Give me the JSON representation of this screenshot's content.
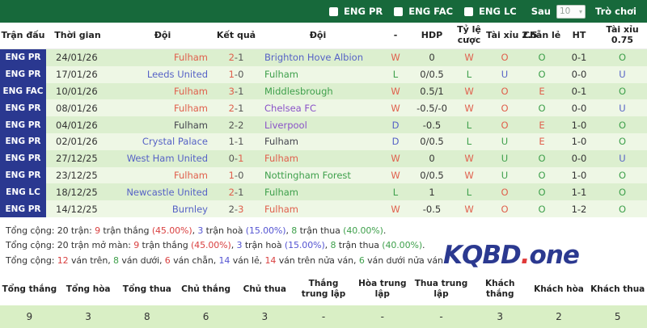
{
  "colors": {
    "red": "#e0604d",
    "green": "#3fa04c",
    "blue": "#5662c6",
    "purple": "#8a52c8",
    "dark": "#45454f",
    "score_dark": "#555555",
    "sum_dark": "#333333",
    "sum_red": "#d94040",
    "sum_blue": "#5454d2",
    "sum_green": "#3fa04c"
  },
  "topbar": {
    "filters": [
      {
        "label": "ENG PR"
      },
      {
        "label": "ENG FAC"
      },
      {
        "label": "ENG LC"
      }
    ],
    "sau_label": "Sau",
    "select_value": "10",
    "game_label": "Trò chơi"
  },
  "table": {
    "headers": [
      "Trận đấu",
      "Thời gian",
      "Đội",
      "Kết quả",
      "Đội",
      "-",
      "HDP",
      "Tỷ lệ cược",
      "Tài xỉu 2.5",
      "Chẵn lẻ",
      "HT",
      "Tài xỉu 0.75"
    ],
    "rows": [
      {
        "league": "ENG PR",
        "date": "24/01/26",
        "home": {
          "name": "Fulham",
          "color": "red"
        },
        "score": {
          "h": "2",
          "a": "1",
          "hc": "red",
          "ac": "score_dark"
        },
        "away": {
          "name": "Brighton Hove Albion",
          "color": "blue"
        },
        "result": {
          "t": "W",
          "c": "red"
        },
        "hdp": "0",
        "odds": {
          "t": "W",
          "c": "red"
        },
        "ou25": {
          "t": "O",
          "c": "red"
        },
        "oe": {
          "t": "O",
          "c": "green"
        },
        "ht": "0-1",
        "ou075": {
          "t": "O",
          "c": "green"
        }
      },
      {
        "league": "ENG PR",
        "date": "17/01/26",
        "home": {
          "name": "Leeds United",
          "color": "blue"
        },
        "score": {
          "h": "1",
          "a": "0",
          "hc": "red",
          "ac": "score_dark"
        },
        "away": {
          "name": "Fulham",
          "color": "green"
        },
        "result": {
          "t": "L",
          "c": "green"
        },
        "hdp": "0/0.5",
        "odds": {
          "t": "L",
          "c": "green"
        },
        "ou25": {
          "t": "U",
          "c": "blue"
        },
        "oe": {
          "t": "O",
          "c": "green"
        },
        "ht": "0-0",
        "ou075": {
          "t": "U",
          "c": "blue"
        }
      },
      {
        "league": "ENG FAC",
        "date": "10/01/26",
        "home": {
          "name": "Fulham",
          "color": "red"
        },
        "score": {
          "h": "3",
          "a": "1",
          "hc": "red",
          "ac": "score_dark"
        },
        "away": {
          "name": "Middlesbrough",
          "color": "green"
        },
        "result": {
          "t": "W",
          "c": "red"
        },
        "hdp": "0.5/1",
        "odds": {
          "t": "W",
          "c": "red"
        },
        "ou25": {
          "t": "O",
          "c": "red"
        },
        "oe": {
          "t": "E",
          "c": "red"
        },
        "ht": "0-1",
        "ou075": {
          "t": "O",
          "c": "green"
        }
      },
      {
        "league": "ENG PR",
        "date": "08/01/26",
        "home": {
          "name": "Fulham",
          "color": "red"
        },
        "score": {
          "h": "2",
          "a": "1",
          "hc": "red",
          "ac": "score_dark"
        },
        "away": {
          "name": "Chelsea FC",
          "color": "purple"
        },
        "result": {
          "t": "W",
          "c": "red"
        },
        "hdp": "-0.5/-0",
        "odds": {
          "t": "W",
          "c": "red"
        },
        "ou25": {
          "t": "O",
          "c": "red"
        },
        "oe": {
          "t": "O",
          "c": "green"
        },
        "ht": "0-0",
        "ou075": {
          "t": "U",
          "c": "blue"
        }
      },
      {
        "league": "ENG PR",
        "date": "04/01/26",
        "home": {
          "name": "Fulham",
          "color": "dark"
        },
        "score": {
          "h": "2",
          "a": "2",
          "hc": "score_dark",
          "ac": "score_dark"
        },
        "away": {
          "name": "Liverpool",
          "color": "purple"
        },
        "result": {
          "t": "D",
          "c": "blue"
        },
        "hdp": "-0.5",
        "odds": {
          "t": "L",
          "c": "green"
        },
        "ou25": {
          "t": "O",
          "c": "red"
        },
        "oe": {
          "t": "E",
          "c": "red"
        },
        "ht": "1-0",
        "ou075": {
          "t": "O",
          "c": "green"
        }
      },
      {
        "league": "ENG PR",
        "date": "02/01/26",
        "home": {
          "name": "Crystal Palace",
          "color": "blue"
        },
        "score": {
          "h": "1",
          "a": "1",
          "hc": "score_dark",
          "ac": "score_dark"
        },
        "away": {
          "name": "Fulham",
          "color": "dark"
        },
        "result": {
          "t": "D",
          "c": "blue"
        },
        "hdp": "0/0.5",
        "odds": {
          "t": "L",
          "c": "green"
        },
        "ou25": {
          "t": "U",
          "c": "green"
        },
        "oe": {
          "t": "E",
          "c": "red"
        },
        "ht": "1-0",
        "ou075": {
          "t": "O",
          "c": "green"
        }
      },
      {
        "league": "ENG PR",
        "date": "27/12/25",
        "home": {
          "name": "West Ham United",
          "color": "blue"
        },
        "score": {
          "h": "0",
          "a": "1",
          "hc": "score_dark",
          "ac": "red"
        },
        "away": {
          "name": "Fulham",
          "color": "red"
        },
        "result": {
          "t": "W",
          "c": "red"
        },
        "hdp": "0",
        "odds": {
          "t": "W",
          "c": "red"
        },
        "ou25": {
          "t": "U",
          "c": "green"
        },
        "oe": {
          "t": "O",
          "c": "green"
        },
        "ht": "0-0",
        "ou075": {
          "t": "U",
          "c": "blue"
        }
      },
      {
        "league": "ENG PR",
        "date": "23/12/25",
        "home": {
          "name": "Fulham",
          "color": "red"
        },
        "score": {
          "h": "1",
          "a": "0",
          "hc": "red",
          "ac": "score_dark"
        },
        "away": {
          "name": "Nottingham Forest",
          "color": "green"
        },
        "result": {
          "t": "W",
          "c": "red"
        },
        "hdp": "0/0.5",
        "odds": {
          "t": "W",
          "c": "red"
        },
        "ou25": {
          "t": "U",
          "c": "green"
        },
        "oe": {
          "t": "O",
          "c": "green"
        },
        "ht": "1-0",
        "ou075": {
          "t": "O",
          "c": "green"
        }
      },
      {
        "league": "ENG LC",
        "date": "18/12/25",
        "home": {
          "name": "Newcastle United",
          "color": "blue"
        },
        "score": {
          "h": "2",
          "a": "1",
          "hc": "red",
          "ac": "score_dark"
        },
        "away": {
          "name": "Fulham",
          "color": "green"
        },
        "result": {
          "t": "L",
          "c": "green"
        },
        "hdp": "1",
        "odds": {
          "t": "L",
          "c": "green"
        },
        "ou25": {
          "t": "O",
          "c": "red"
        },
        "oe": {
          "t": "O",
          "c": "green"
        },
        "ht": "1-1",
        "ou075": {
          "t": "O",
          "c": "green"
        }
      },
      {
        "league": "ENG PR",
        "date": "14/12/25",
        "home": {
          "name": "Burnley",
          "color": "blue"
        },
        "score": {
          "h": "2",
          "a": "3",
          "hc": "score_dark",
          "ac": "red"
        },
        "away": {
          "name": "Fulham",
          "color": "red"
        },
        "result": {
          "t": "W",
          "c": "red"
        },
        "hdp": "-0.5",
        "odds": {
          "t": "W",
          "c": "red"
        },
        "ou25": {
          "t": "O",
          "c": "red"
        },
        "oe": {
          "t": "O",
          "c": "green"
        },
        "ht": "1-2",
        "ou075": {
          "t": "O",
          "c": "green"
        }
      }
    ]
  },
  "summary_lines": [
    {
      "segments": [
        {
          "t": "Tổng cộng: 20 trận: ",
          "c": "sum_dark"
        },
        {
          "t": "9",
          "c": "sum_red"
        },
        {
          "t": " trận thắng ",
          "c": "sum_dark"
        },
        {
          "t": "(45.00%)",
          "c": "sum_red"
        },
        {
          "t": ", ",
          "c": "sum_dark"
        },
        {
          "t": "3",
          "c": "sum_blue"
        },
        {
          "t": " trận hoà ",
          "c": "sum_dark"
        },
        {
          "t": "(15.00%)",
          "c": "sum_blue"
        },
        {
          "t": ", ",
          "c": "sum_dark"
        },
        {
          "t": "8",
          "c": "sum_green"
        },
        {
          "t": " trận thua ",
          "c": "sum_dark"
        },
        {
          "t": "(40.00%)",
          "c": "sum_green"
        },
        {
          "t": ".",
          "c": "sum_dark"
        }
      ]
    },
    {
      "segments": [
        {
          "t": "Tổng cộng: 20 trận mở màn: ",
          "c": "sum_dark"
        },
        {
          "t": "9",
          "c": "sum_red"
        },
        {
          "t": " trận thắng ",
          "c": "sum_dark"
        },
        {
          "t": "(45.00%)",
          "c": "sum_red"
        },
        {
          "t": ", ",
          "c": "sum_dark"
        },
        {
          "t": "3",
          "c": "sum_blue"
        },
        {
          "t": " trận hoà ",
          "c": "sum_dark"
        },
        {
          "t": "(15.00%)",
          "c": "sum_blue"
        },
        {
          "t": ", ",
          "c": "sum_dark"
        },
        {
          "t": "8",
          "c": "sum_green"
        },
        {
          "t": " trận thua ",
          "c": "sum_dark"
        },
        {
          "t": "(40.00%)",
          "c": "sum_green"
        },
        {
          "t": ".",
          "c": "sum_dark"
        }
      ]
    },
    {
      "segments": [
        {
          "t": "Tổng cộng: ",
          "c": "sum_dark"
        },
        {
          "t": "12",
          "c": "sum_red"
        },
        {
          "t": " ván trên, ",
          "c": "sum_dark"
        },
        {
          "t": "8",
          "c": "sum_green"
        },
        {
          "t": " ván dưới, ",
          "c": "sum_dark"
        },
        {
          "t": "6",
          "c": "sum_red"
        },
        {
          "t": " ván chẵn, ",
          "c": "sum_dark"
        },
        {
          "t": "14",
          "c": "sum_blue"
        },
        {
          "t": " ván lẻ, ",
          "c": "sum_dark"
        },
        {
          "t": "14",
          "c": "sum_red"
        },
        {
          "t": " ván trên nửa ván, ",
          "c": "sum_dark"
        },
        {
          "t": "6",
          "c": "sum_green"
        },
        {
          "t": " ván dưới nửa ván.",
          "c": "sum_dark"
        }
      ]
    }
  ],
  "logo": {
    "kqbd": "KQBD",
    "dot": ".",
    "one": "one"
  },
  "stats": {
    "headers": [
      "Tổng thắng",
      "Tổng hòa",
      "Tổng thua",
      "Chủ thắng",
      "Chủ thua",
      "Thắng trung lập",
      "Hòa trung lập",
      "Thua trung lập",
      "Khách thắng",
      "Khách hòa",
      "Khách thua"
    ],
    "values": [
      "9",
      "3",
      "8",
      "6",
      "3",
      "-",
      "-",
      "-",
      "3",
      "2",
      "5"
    ]
  }
}
